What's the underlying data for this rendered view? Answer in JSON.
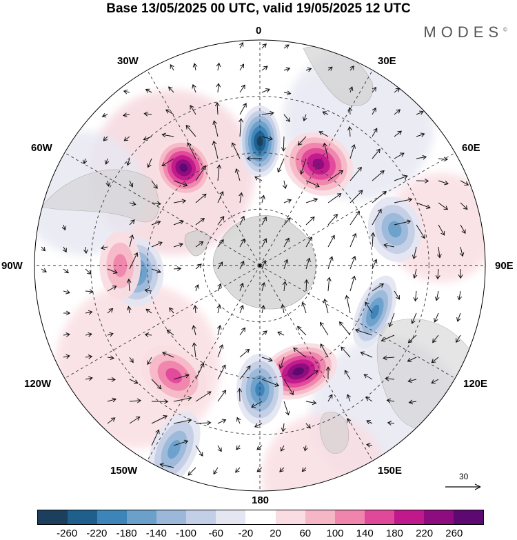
{
  "header": {
    "title": "Base 13/05/2025 00 UTC, valid 19/05/2025 12 UTC",
    "brand": "MODES",
    "brand_mark": "©"
  },
  "map": {
    "projection": "south polar stereographic",
    "longitude_labels": {
      "top": "0",
      "top_left": "30W",
      "top_right": "30E",
      "upper_left": "60W",
      "upper_right": "60E",
      "left": "90W",
      "right": "90E",
      "lower_left": "120W",
      "lower_right": "120E",
      "bottom_left": "150W",
      "bottom_right": "150E",
      "bottom": "180"
    },
    "reference_vector": "30",
    "anomaly_centers": [
      {
        "sign": "negative",
        "longitude_sector": "0",
        "strength": "-260"
      },
      {
        "sign": "positive",
        "longitude_sector": "30W",
        "strength": "260"
      },
      {
        "sign": "positive",
        "longitude_sector": "30E",
        "strength": "220"
      },
      {
        "sign": "negative",
        "longitude_sector": "60E-90E",
        "strength": "-140"
      },
      {
        "sign": "negative",
        "longitude_sector": "120E",
        "strength": "-180"
      },
      {
        "sign": "positive",
        "longitude_sector": "150E",
        "strength": "260"
      },
      {
        "sign": "negative",
        "longitude_sector": "180",
        "strength": "-180"
      },
      {
        "sign": "positive",
        "longitude_sector": "150W",
        "strength": "140"
      },
      {
        "sign": "negative",
        "longitude_sector": "150W",
        "strength": "-140"
      },
      {
        "sign": "negative",
        "longitude_sector": "90W-120W",
        "strength": "-180"
      },
      {
        "sign": "positive",
        "longitude_sector": "90W",
        "strength": "100"
      }
    ]
  },
  "colorbar": {
    "ticks": [
      "-260",
      "-220",
      "-180",
      "-140",
      "-100",
      "-60",
      "-20",
      "20",
      "60",
      "100",
      "140",
      "180",
      "220",
      "260"
    ],
    "colors": [
      "#1c3f5e",
      "#1e5f8c",
      "#3d84b8",
      "#6ba0cb",
      "#9bb8da",
      "#c3cfe6",
      "#e4e6f1",
      "#ffffff",
      "#f9dde2",
      "#f5b7c6",
      "#ef85ac",
      "#e0489a",
      "#c0198b",
      "#8d0c7e",
      "#5c0a72"
    ]
  }
}
